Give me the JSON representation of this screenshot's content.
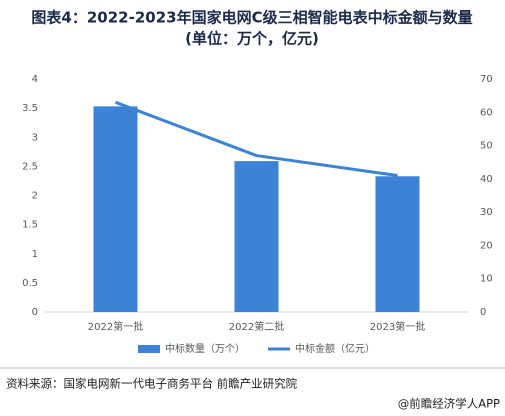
{
  "chart_data": {
    "type": "bar-line",
    "title": "图表4：2022-2023年国家电网C级三相智能电表中标金额与数量",
    "subtitle": "(单位：万个，亿元)",
    "categories": [
      "2022第一批",
      "2022第二批",
      "2023第一批"
    ],
    "series": [
      {
        "name": "中标数量（万个）",
        "type": "bar",
        "color": "#3c82d6",
        "values": [
          3.53,
          2.59,
          2.33
        ]
      },
      {
        "name": "中标金额（亿元）",
        "type": "line",
        "axis": "y2",
        "color": "#3c82d6",
        "values": [
          63,
          47,
          41
        ]
      }
    ],
    "ylim": [
      0,
      4
    ],
    "yticks": [
      0,
      0.5,
      1,
      1.5,
      2,
      2.5,
      3,
      3.5,
      4
    ],
    "y2lim": [
      0,
      70
    ],
    "y2ticks": [
      0,
      10,
      20,
      30,
      40,
      50,
      60,
      70
    ],
    "grid": false,
    "legend": "bottom"
  },
  "footer": {
    "source": "资料来源：国家电网新一代电子商务平台 前瞻产业研究院",
    "credit": "@前瞻经济学人APP"
  }
}
